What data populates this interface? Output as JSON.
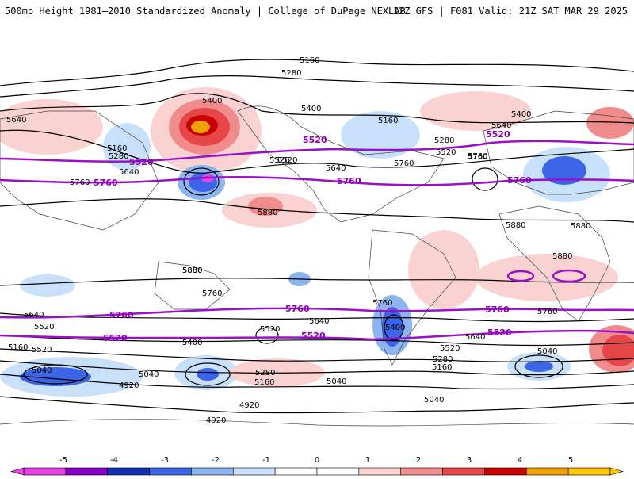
{
  "header": {
    "title": "500mb Height 1981–2010 Standardized Anomaly | College of DuPage NEXLAB",
    "run_info": "12Z GFS | F081 Valid: 21Z SAT MAR 29 2025"
  },
  "map": {
    "projection": "global equirectangular",
    "contour_line_color": "#000000",
    "highlight_contour_color": "#9a10c8",
    "highlight_values": [
      "5760",
      "5520"
    ],
    "contour_labels": [
      "5160",
      "5280",
      "5400",
      "5640",
      "5520",
      "5760",
      "5880",
      "5040",
      "4920",
      "5520",
      "5760"
    ],
    "black_labels": [
      "5160",
      "5280",
      "5400",
      "5640",
      "5160",
      "5280",
      "5640",
      "5760",
      "5520",
      "5400",
      "5160",
      "5280",
      "5520",
      "5640",
      "5760",
      "5520",
      "5880",
      "5400",
      "5640",
      "5880",
      "5880",
      "5880",
      "5760",
      "5760",
      "5880",
      "5640",
      "5520",
      "5400",
      "5520",
      "5760",
      "5640",
      "5520",
      "5400",
      "5640",
      "5760",
      "5520",
      "5280",
      "5160",
      "5040",
      "5160",
      "5280",
      "5040",
      "4920",
      "4920",
      "5040",
      "4920",
      "5040",
      "5160",
      "5040",
      "5760",
      "5880"
    ],
    "purple_labels": [
      "5520",
      "5760",
      "5760",
      "5520",
      "5760",
      "5520",
      "5760",
      "5760",
      "5520",
      "5520",
      "5760",
      "5520"
    ]
  },
  "colorbar": {
    "ticks": [
      "-5",
      "-4",
      "-3",
      "-2",
      "-1",
      "0",
      "1",
      "2",
      "3",
      "4",
      "5"
    ],
    "colors": [
      "#e640e6",
      "#8800c8",
      "#1030b0",
      "#3c64e6",
      "#8cb4f0",
      "#c8e0fa",
      "#ffffff",
      "#ffffff",
      "#fad2d2",
      "#f08c8c",
      "#e64646",
      "#c80000",
      "#f0a000",
      "#ffc800"
    ]
  }
}
